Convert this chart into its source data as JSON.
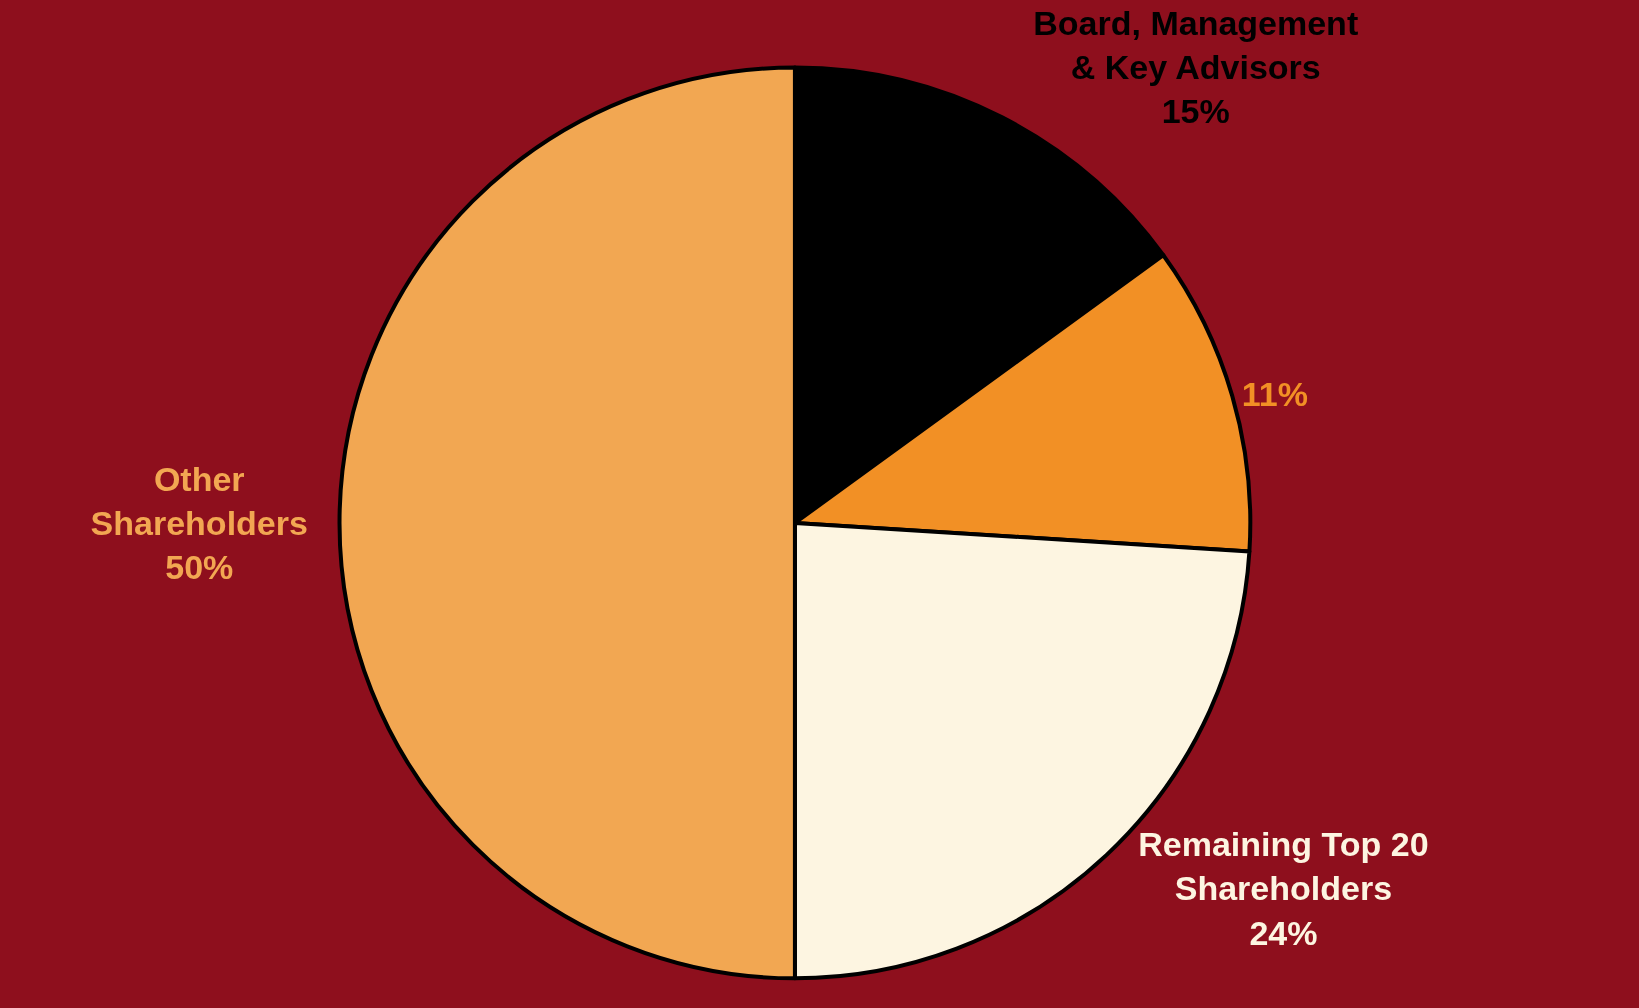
{
  "chart_data": {
    "type": "pie",
    "categories": [
      "Board, Management\n& Key Advisors",
      null,
      "Remaining Top 20\nShareholders",
      "Other\nShareholders"
    ],
    "values": [
      15,
      11,
      24,
      50
    ],
    "value_labels": [
      "15%",
      "11%",
      "24%",
      "50%"
    ],
    "colors": [
      "#000000",
      "#f29025",
      "#fdf5e1",
      "#f2a752"
    ],
    "legend": false
  }
}
